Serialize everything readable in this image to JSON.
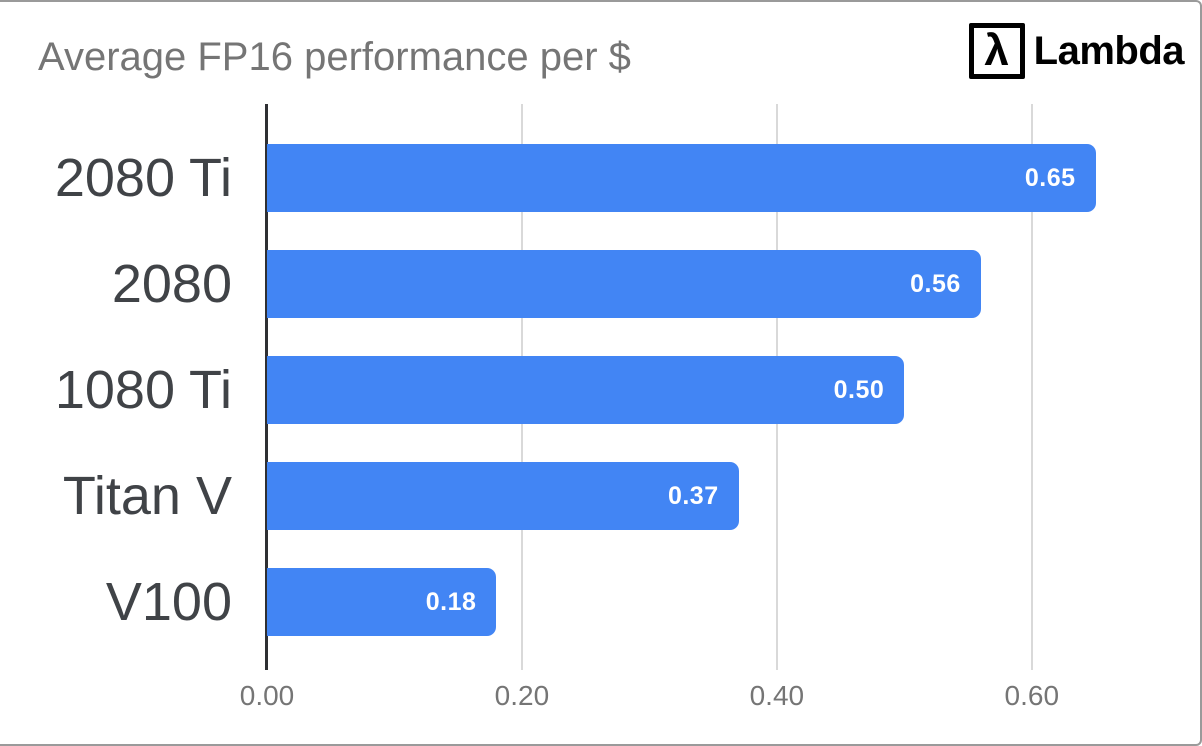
{
  "header": {
    "title": "Average FP16 performance per $",
    "logo": {
      "symbol": "λ",
      "brand": "Lambda"
    }
  },
  "chart_data": {
    "type": "bar",
    "orientation": "horizontal",
    "title": "Average FP16 performance per $",
    "categories": [
      "2080 Ti",
      "2080",
      "1080 Ti",
      "Titan V",
      "V100"
    ],
    "values": [
      0.65,
      0.56,
      0.5,
      0.37,
      0.18
    ],
    "value_labels": [
      "0.65",
      "0.56",
      "0.50",
      "0.37",
      "0.18"
    ],
    "x_ticks": [
      {
        "label": "0.00",
        "value": 0.0
      },
      {
        "label": "0.20",
        "value": 0.2
      },
      {
        "label": "0.40",
        "value": 0.4
      },
      {
        "label": "0.60",
        "value": 0.6
      }
    ],
    "xlabel": "",
    "ylabel": "",
    "xlim": [
      0,
      0.71
    ],
    "grid": true,
    "legend": "none",
    "colors": {
      "bar": "#4285f4",
      "value_label": "#ffffff",
      "category_label": "#404347",
      "axis_line": "#2f3033",
      "gridline": "#d9d9d9",
      "tick_label": "#757575",
      "title": "#757575"
    }
  }
}
